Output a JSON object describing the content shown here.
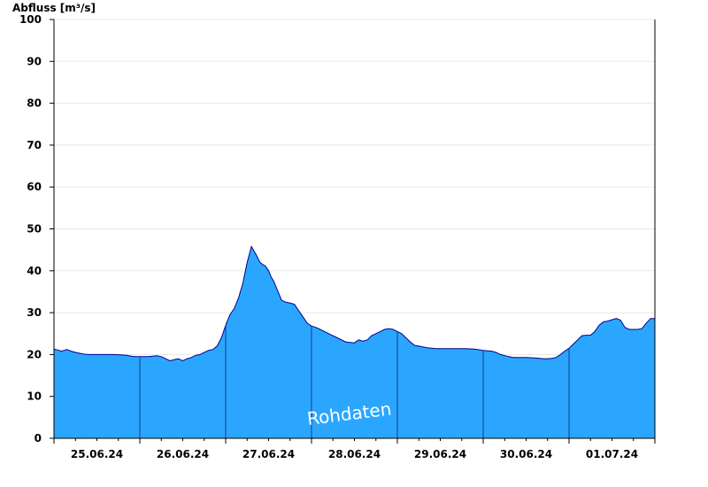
{
  "chart_data": {
    "type": "area",
    "ylabel": "Abfluss [m³/s]",
    "ylim": [
      0,
      100
    ],
    "yticks": [
      0,
      10,
      20,
      30,
      40,
      50,
      60,
      70,
      80,
      90,
      100
    ],
    "day_labels": [
      "25.06.24",
      "26.06.24",
      "27.06.24",
      "28.06.24",
      "29.06.24",
      "30.06.24",
      "01.07.24"
    ],
    "grid": "horizontal",
    "fill_color": "#2ba6ff",
    "line_color": "#00008b",
    "watermark": "Rohdaten",
    "series": [
      {
        "x": [
          0,
          0.06,
          0.08,
          0.12,
          0.15,
          0.2,
          0.25,
          0.3,
          0.35,
          0.4,
          0.5,
          0.6,
          0.7,
          0.8,
          0.85,
          0.9,
          0.95,
          1.0,
          1.1,
          1.2,
          1.25,
          1.3,
          1.35,
          1.4,
          1.45,
          1.5,
          1.55,
          1.6,
          1.65,
          1.7,
          1.75,
          1.8,
          1.85,
          1.9,
          1.95,
          2.0,
          2.05,
          2.1,
          2.15,
          2.2,
          2.25,
          2.3,
          2.35,
          2.4,
          2.43,
          2.46,
          2.5,
          2.53,
          2.56,
          2.6,
          2.65,
          2.7,
          2.75,
          2.8,
          2.85,
          2.9,
          2.95,
          3.0,
          3.05,
          3.1,
          3.15,
          3.2,
          3.3,
          3.4,
          3.5,
          3.55,
          3.6,
          3.65,
          3.7,
          3.75,
          3.8,
          3.85,
          3.9,
          3.95,
          4.0,
          4.05,
          4.1,
          4.15,
          4.2,
          4.25,
          4.3,
          4.35,
          4.4,
          4.45,
          4.5,
          4.55,
          4.6,
          4.7,
          4.8,
          4.9,
          5.0,
          5.1,
          5.15,
          5.2,
          5.3,
          5.35,
          5.4,
          5.5,
          5.6,
          5.7,
          5.75,
          5.8,
          5.85,
          5.9,
          5.95,
          6.0,
          6.05,
          6.1,
          6.15,
          6.2,
          6.25,
          6.3,
          6.35,
          6.4,
          6.45,
          6.5,
          6.55,
          6.6,
          6.65,
          6.7,
          6.75,
          6.8,
          6.85,
          6.9,
          6.95,
          7.0
        ],
        "y": [
          21.3,
          21.0,
          20.8,
          21.0,
          21.2,
          20.8,
          20.5,
          20.3,
          20.1,
          20.0,
          20.0,
          20.0,
          20.0,
          19.9,
          19.8,
          19.6,
          19.5,
          19.5,
          19.5,
          19.7,
          19.5,
          19.0,
          18.5,
          18.8,
          19.0,
          18.5,
          19.0,
          19.3,
          19.8,
          20.0,
          20.5,
          21.0,
          21.2,
          22.0,
          24.0,
          27.0,
          29.5,
          31.0,
          33.5,
          37.0,
          42.0,
          45.8,
          44.0,
          42.0,
          41.5,
          41.2,
          40.0,
          38.5,
          37.5,
          35.5,
          33.0,
          32.5,
          32.3,
          32.0,
          30.5,
          29.0,
          27.5,
          26.8,
          26.5,
          26.0,
          25.5,
          25.0,
          24.0,
          23.0,
          22.8,
          23.5,
          23.2,
          23.5,
          24.5,
          25.0,
          25.5,
          26.0,
          26.2,
          26.0,
          25.5,
          25.0,
          24.0,
          23.0,
          22.2,
          22.0,
          21.8,
          21.6,
          21.5,
          21.4,
          21.4,
          21.4,
          21.4,
          21.4,
          21.4,
          21.3,
          21.0,
          20.8,
          20.5,
          20.0,
          19.5,
          19.3,
          19.3,
          19.3,
          19.2,
          19.0,
          19.0,
          19.1,
          19.3,
          20.0,
          20.8,
          21.5,
          22.5,
          23.5,
          24.5,
          24.6,
          24.6,
          25.5,
          27.0,
          27.8,
          28.0,
          28.3,
          28.6,
          28.2,
          26.5,
          26.0,
          26.0,
          26.0,
          26.2,
          27.5,
          28.6,
          28.6
        ]
      }
    ]
  }
}
